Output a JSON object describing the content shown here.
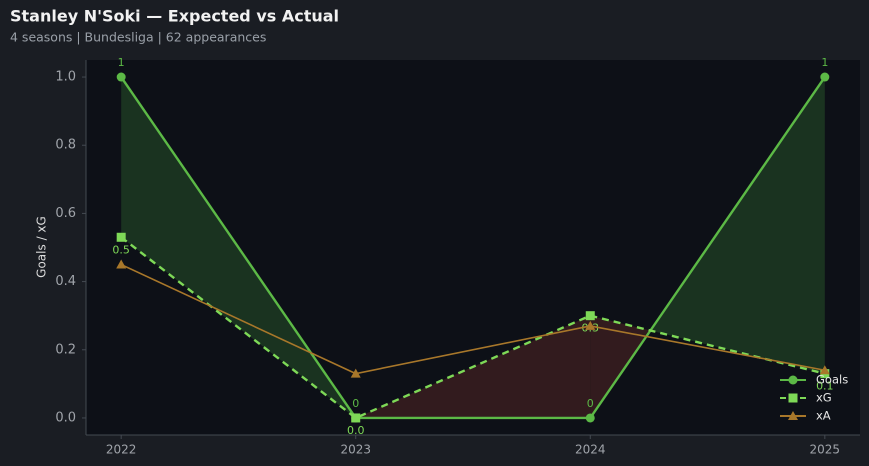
{
  "chart_data": {
    "type": "line",
    "title": "Stanley N'Soki — Expected vs Actual",
    "subtitle": "4 seasons | Bundesliga | 62 appearances",
    "y_label": "Goals / xG",
    "x": [
      2022,
      2023,
      2024,
      2025
    ],
    "series": [
      {
        "name": "Goals",
        "color": "#5cb946",
        "values": [
          1,
          0,
          0,
          1
        ],
        "marker": "circle",
        "dash": false
      },
      {
        "name": "xG",
        "color": "#7ed957",
        "values": [
          0.53,
          0,
          0.3,
          0.13
        ],
        "value_labels": [
          "0.5",
          "0.0",
          "0.3",
          "0.1"
        ],
        "marker": "square",
        "dash": true
      },
      {
        "name": "xA",
        "color": "#a8772a",
        "values": [
          0.45,
          0.13,
          0.27,
          0.14
        ],
        "marker": "triangle",
        "dash": false
      }
    ],
    "xlim": [
      2021.85,
      2025.15
    ],
    "xticks": [
      2022,
      2023,
      2024,
      2025
    ],
    "ylim": [
      -0.05,
      1.05
    ],
    "yticks": [
      {
        "value": 0,
        "label": "0.0"
      },
      0.2,
      0.4,
      0.6,
      0.8,
      {
        "value": 1,
        "label": "1.0"
      }
    ],
    "grid": false,
    "legend": "lower right",
    "fill_colors": {
      "above": "#1d3a22",
      "below": "#3a1d20"
    }
  }
}
